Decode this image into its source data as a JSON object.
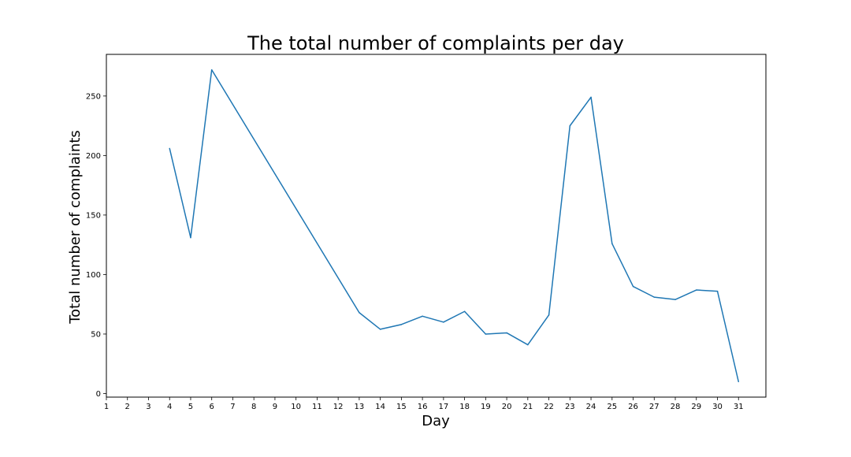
{
  "chart_data": {
    "type": "line",
    "title": "The total number of complaints per day",
    "xlabel": "Day",
    "ylabel": "Total number of complaints",
    "xlim": [
      1,
      32.3
    ],
    "ylim": [
      -3,
      285
    ],
    "x_ticks": [
      1,
      2,
      3,
      4,
      5,
      6,
      7,
      8,
      9,
      10,
      11,
      12,
      13,
      14,
      15,
      16,
      17,
      18,
      19,
      20,
      21,
      22,
      23,
      24,
      25,
      26,
      27,
      28,
      29,
      30,
      31
    ],
    "y_ticks": [
      0,
      50,
      100,
      150,
      200,
      250
    ],
    "grid": false,
    "legend": "none",
    "series": [
      {
        "color": "#1f77b4",
        "x": [
          4,
          5,
          6,
          13,
          14,
          15,
          16,
          17,
          18,
          19,
          20,
          21,
          22,
          23,
          24,
          25,
          26,
          27,
          28,
          29,
          30,
          31
        ],
        "y": [
          206,
          131,
          272,
          68,
          54,
          58,
          65,
          60,
          69,
          50,
          51,
          41,
          66,
          225,
          249,
          126,
          90,
          81,
          79,
          87,
          86,
          10
        ]
      }
    ]
  }
}
